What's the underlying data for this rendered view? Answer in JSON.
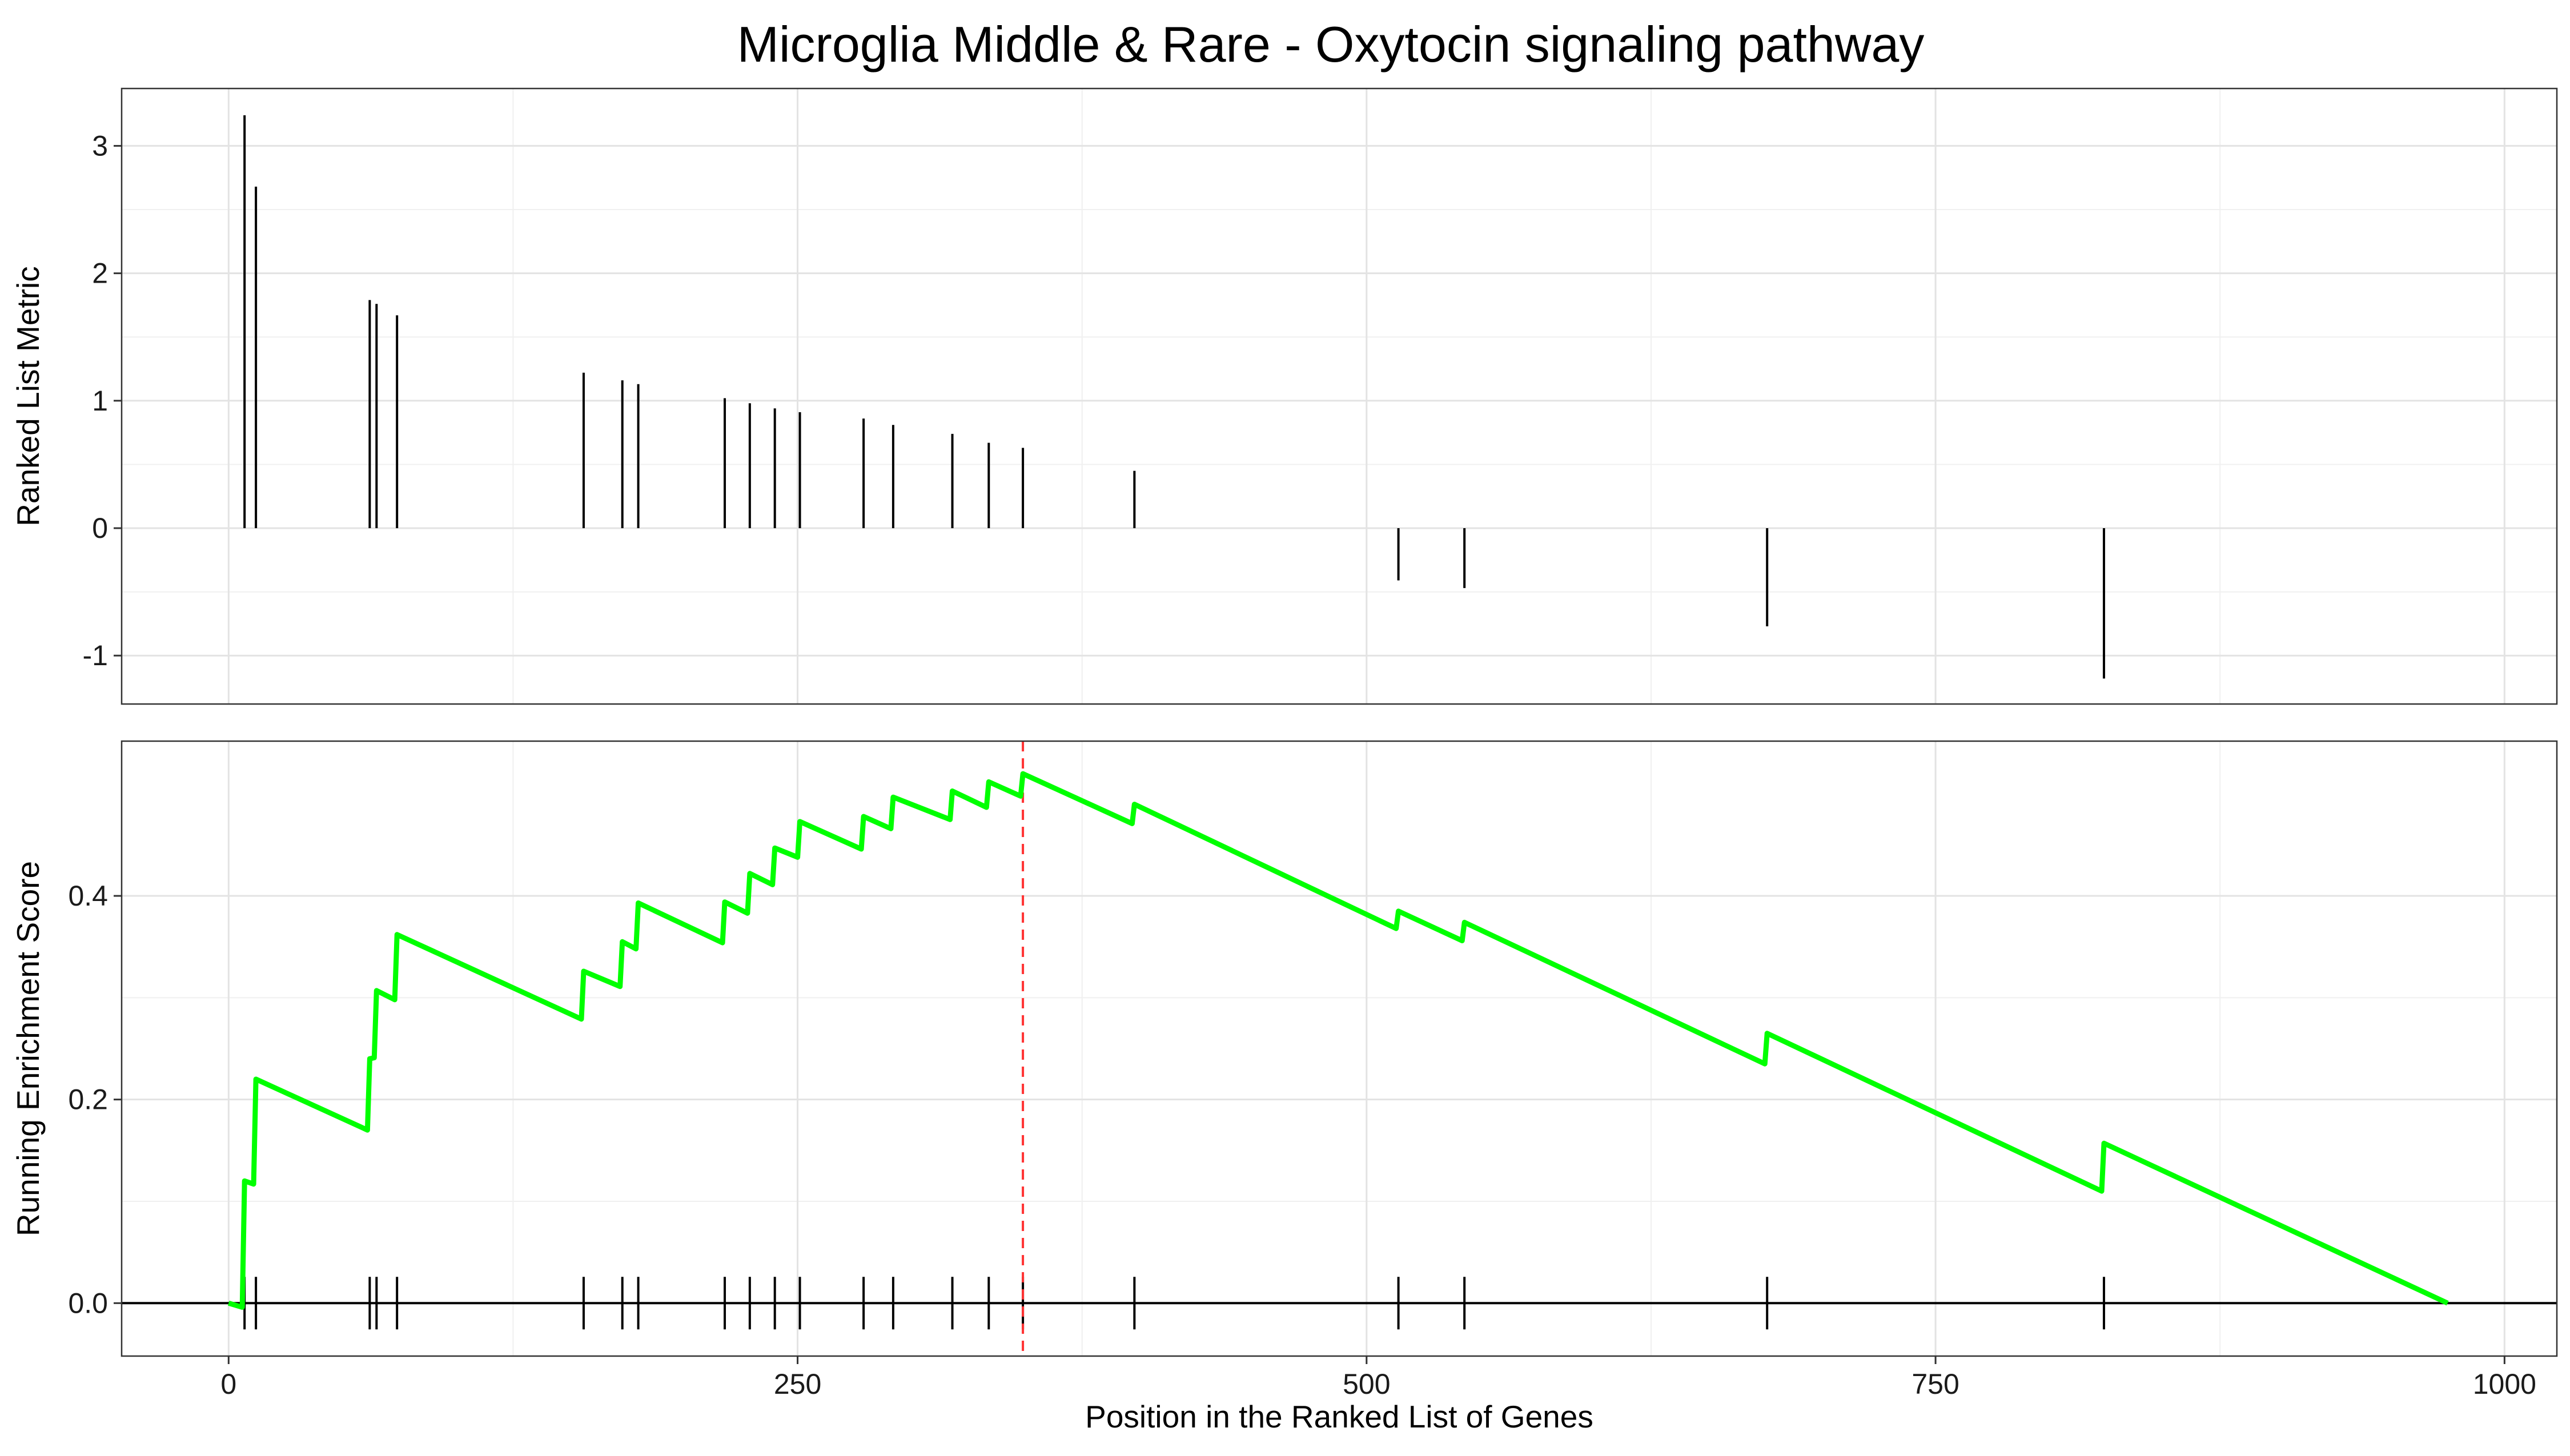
{
  "chart_data": {
    "type": "line",
    "title": "Microglia Middle & Rare - Oxytocin signaling pathway",
    "xlabel": "Position in the Ranked List of Genes",
    "x_ticks": [
      0,
      250,
      500,
      750,
      1000
    ],
    "x_tick_labels": [
      "0",
      "250",
      "500",
      "750",
      "1000"
    ],
    "xlim": [
      -47,
      1023
    ],
    "grid": true,
    "legend": "none",
    "hits": [
      7,
      12,
      62,
      65,
      74,
      156,
      173,
      180,
      218,
      229,
      240,
      251,
      279,
      292,
      318,
      334,
      349,
      398,
      514,
      543,
      676,
      824
    ],
    "peak_position": 349,
    "n_genes": 975,
    "top_panel": {
      "ylabel": "Ranked List Metric",
      "ylim": [
        -1.38,
        3.45
      ],
      "y_ticks": [
        -1,
        0,
        1,
        2,
        3
      ],
      "y_tick_labels": [
        "-1",
        "0",
        "1",
        "2",
        "3"
      ],
      "metric": [
        3.24,
        2.68,
        1.79,
        1.76,
        1.67,
        1.22,
        1.16,
        1.13,
        1.02,
        0.98,
        0.94,
        0.91,
        0.86,
        0.81,
        0.74,
        0.67,
        0.63,
        0.45,
        -0.41,
        -0.47,
        -0.77,
        -1.18
      ],
      "bar_color": "#000000"
    },
    "bottom_panel": {
      "ylabel": "Running Enrichment Score",
      "ylim": [
        -0.052,
        0.552
      ],
      "y_ticks": [
        0.0,
        0.2,
        0.4
      ],
      "y_tick_labels": [
        "0.0",
        "0.2",
        "0.4"
      ],
      "line_color": "#00ff00",
      "peak_line_color": "#ff3333",
      "series": [
        {
          "x": [
            0,
            6,
            7,
            11,
            12,
            61,
            62,
            64,
            65,
            73,
            74,
            155,
            156,
            172,
            173,
            179,
            180,
            217,
            218,
            228,
            229,
            239,
            240,
            250,
            251,
            278,
            279,
            291,
            292,
            317,
            318,
            333,
            334,
            348,
            349,
            397,
            398,
            513,
            514,
            542,
            543,
            675,
            676,
            823,
            824,
            975
          ],
          "y": [
            0.0,
            -0.004,
            0.12,
            0.117,
            0.22,
            0.17,
            0.24,
            0.241,
            0.307,
            0.298,
            0.362,
            0.279,
            0.326,
            0.311,
            0.355,
            0.348,
            0.393,
            0.354,
            0.394,
            0.383,
            0.422,
            0.411,
            0.447,
            0.438,
            0.473,
            0.446,
            0.478,
            0.466,
            0.497,
            0.475,
            0.503,
            0.487,
            0.512,
            0.498,
            0.52,
            0.471,
            0.49,
            0.368,
            0.385,
            0.356,
            0.374,
            0.235,
            0.265,
            0.11,
            0.157,
            0.0
          ]
        }
      ]
    }
  }
}
